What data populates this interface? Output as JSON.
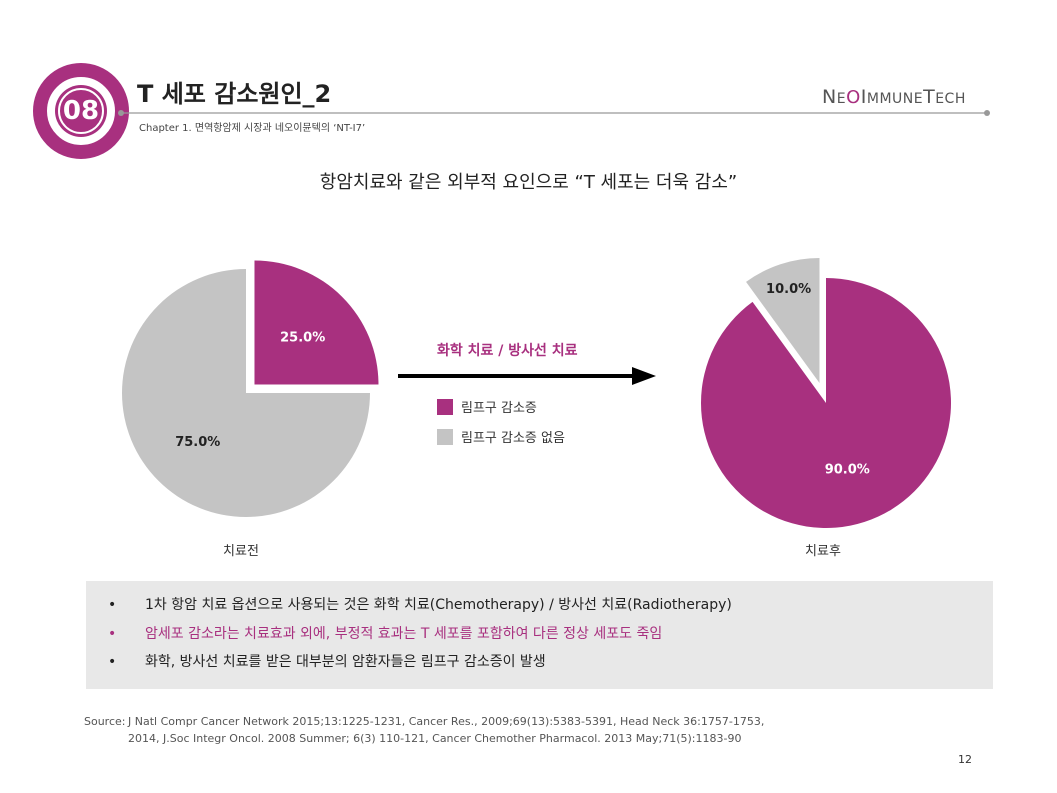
{
  "header": {
    "section_number": "08",
    "title": "T 세포 감소원인_2",
    "chapter": "Chapter 1. 면역항암제 시장과 네오이뮨텍의 ‘NT-I7’",
    "logo": {
      "part1_big": "N",
      "part1_small": "E",
      "o": "O",
      "part2_big": "I",
      "part2_small": "MMUNE",
      "part3_big": "T",
      "part3_small": "ECH"
    }
  },
  "subtitle": "항암치료와 같은 외부적 요인으로 “T 세포는 더욱 감소”",
  "treatment_label": "화학 치료 / 방사선 치료",
  "legend": [
    {
      "label": "림프구 감소증",
      "color": "#a8307f"
    },
    {
      "label": "림프구 감소증 없음",
      "color": "#c4c4c4"
    }
  ],
  "chart_data": [
    {
      "type": "pie",
      "name": "치료전",
      "categories": [
        "림프구 감소증",
        "림프구 감소증 없음"
      ],
      "values": [
        25.0,
        75.0
      ],
      "labels": [
        "25.0%",
        "75.0%"
      ],
      "exploded": "림프구 감소증",
      "colors": [
        "#a8307f",
        "#c4c4c4"
      ]
    },
    {
      "type": "pie",
      "name": "치료후",
      "categories": [
        "림프구 감소증",
        "림프구 감소증 없음"
      ],
      "values": [
        90.0,
        10.0
      ],
      "labels": [
        "90.0%",
        "10.0%"
      ],
      "exploded": "림프구 감소증 없음",
      "colors": [
        "#a8307f",
        "#c4c4c4"
      ]
    }
  ],
  "notes": [
    {
      "text": "1차 항암 치료 옵션으로 사용되는 것은 화학 치료(Chemotherapy) / 방사선 치료(Radiotherapy)",
      "color": "#222222"
    },
    {
      "text": "암세포 감소라는 치료효과 외에, 부정적 효과는 T 세포를 포함하여 다른 정상 세포도 죽임",
      "color": "#a8307f"
    },
    {
      "text": "화학, 방사선 치료를 받은 대부분의 암환자들은 림프구 감소증이 발생",
      "color": "#222222"
    }
  ],
  "source": {
    "label": "Source:",
    "line1": "J Natl Compr Cancer Network 2015;13:1225-1231, Cancer Res., 2009;69(13):5383-5391, Head Neck 36:1757-1753,",
    "line2": "2014, J.Soc Integr Oncol. 2008 Summer; 6(3) 110-121, Cancer Chemother Pharmacol. 2013 May;71(5):1183-90"
  },
  "page_number": "12",
  "colors": {
    "accent": "#a8307f",
    "gray": "#c4c4c4"
  }
}
